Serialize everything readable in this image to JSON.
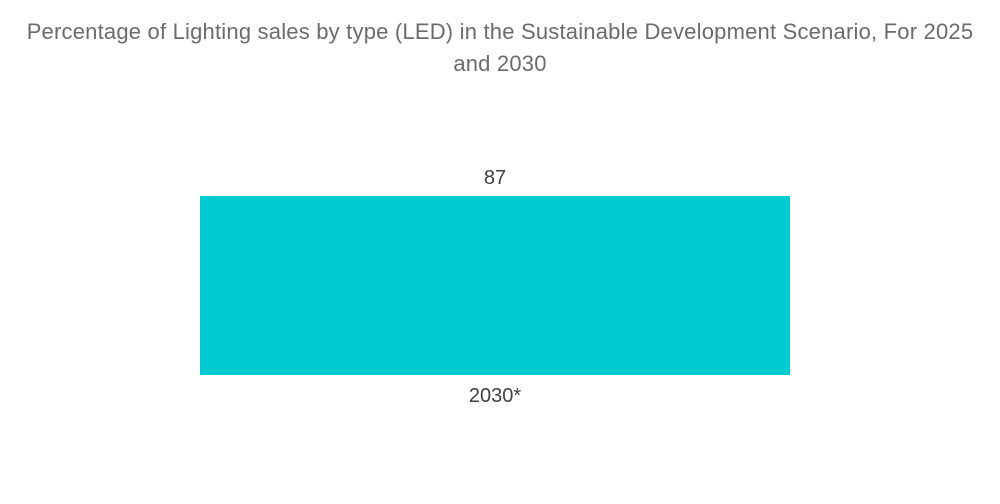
{
  "chart_data": {
    "type": "bar",
    "title": "Percentage of Lighting sales by type (LED) in the Sustainable Development Scenario, For 2025 and 2030",
    "categories": [
      "2030*"
    ],
    "values": [
      87
    ],
    "value_labels": [
      "87"
    ],
    "xlabel": "",
    "ylabel": "",
    "ylim": [
      0,
      100
    ],
    "grid": false,
    "legend": false,
    "bar_color": "#00CBD2",
    "title_color": "#6B6B6B",
    "label_color": "#404040",
    "background_color": "#FFFFFF"
  }
}
